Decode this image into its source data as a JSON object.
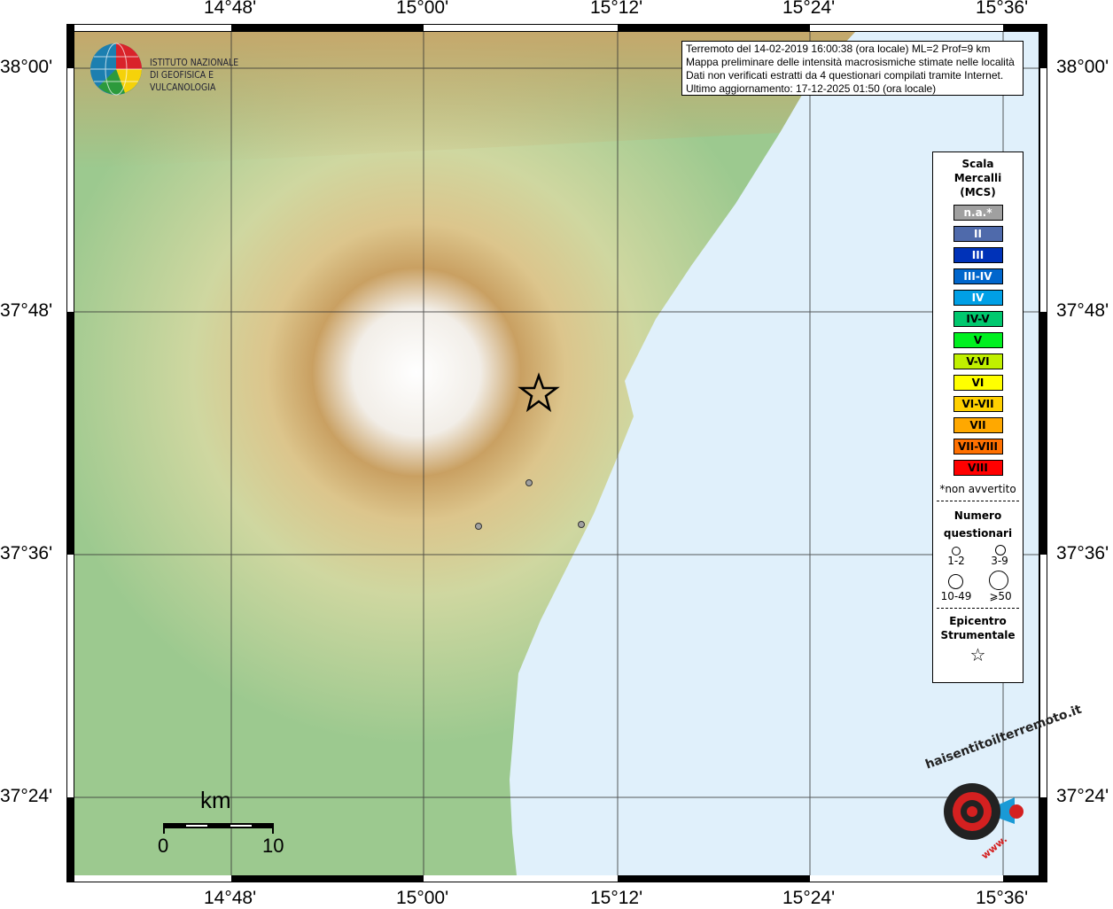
{
  "map": {
    "lon_labels": [
      "14°48'",
      "15°00'",
      "15°12'",
      "15°24'",
      "15°36'"
    ],
    "lat_labels": [
      "38°00'",
      "37°48'",
      "37°36'",
      "37°24'"
    ],
    "land_color": "#9cc98f",
    "sea_color": "#e0f0fb"
  },
  "logo": {
    "line1": "ISTITUTO NAZIONALE",
    "line2": "DI GEOFISICA E VULCANOLOGIA"
  },
  "info": {
    "line1": "Terremoto del 14-02-2019 16:00:38 (ora locale) ML=2 Prof=9 km",
    "line2": "Mappa preliminare delle intensità macrosismiche stimate nelle località",
    "line3": "Dati non verificati estratti da 4 questionari compilati tramite Internet.",
    "line4": "Ultimo aggiornamento: 17-12-2025 01:50 (ora locale)"
  },
  "legend": {
    "title1": "Scala",
    "title2": "Mercalli",
    "title3": "(MCS)",
    "scale": [
      {
        "label": "n.a.*",
        "color": "#a0a0a0",
        "text": "#ffffff"
      },
      {
        "label": "II",
        "color": "#4f6aab",
        "text": "#ffffff"
      },
      {
        "label": "III",
        "color": "#0032b8",
        "text": "#ffffff"
      },
      {
        "label": "III-IV",
        "color": "#0066cc",
        "text": "#ffffff"
      },
      {
        "label": "IV",
        "color": "#00a0e6",
        "text": "#ffffff"
      },
      {
        "label": "IV-V",
        "color": "#00c86e",
        "text": "#000000"
      },
      {
        "label": "V",
        "color": "#00f020",
        "text": "#000000"
      },
      {
        "label": "V-VI",
        "color": "#c0f000",
        "text": "#000000"
      },
      {
        "label": "VI",
        "color": "#ffff00",
        "text": "#000000"
      },
      {
        "label": "VI-VII",
        "color": "#ffd000",
        "text": "#000000"
      },
      {
        "label": "VII",
        "color": "#ffa800",
        "text": "#000000"
      },
      {
        "label": "VII-VIII",
        "color": "#ff7000",
        "text": "#000000"
      },
      {
        "label": "VIII",
        "color": "#ff0000",
        "text": "#000000"
      }
    ],
    "note": "*non avvertito",
    "count_title1": "Numero",
    "count_title2": "questionari",
    "counts": [
      "1-2",
      "3-9",
      "10-49",
      "⩾50"
    ],
    "epi_title1": "Epicentro",
    "epi_title2": "Strumentale"
  },
  "scalebar": {
    "unit": "km",
    "min": "0",
    "max": "10"
  },
  "epicenter": {
    "icon": "star-icon"
  },
  "observations": [
    {
      "intensity": "n.a.*"
    },
    {
      "intensity": "n.a.*"
    },
    {
      "intensity": "n.a.*"
    }
  ],
  "brand": {
    "text": "haisentitoilterremoto.it",
    "url_text": "www."
  }
}
